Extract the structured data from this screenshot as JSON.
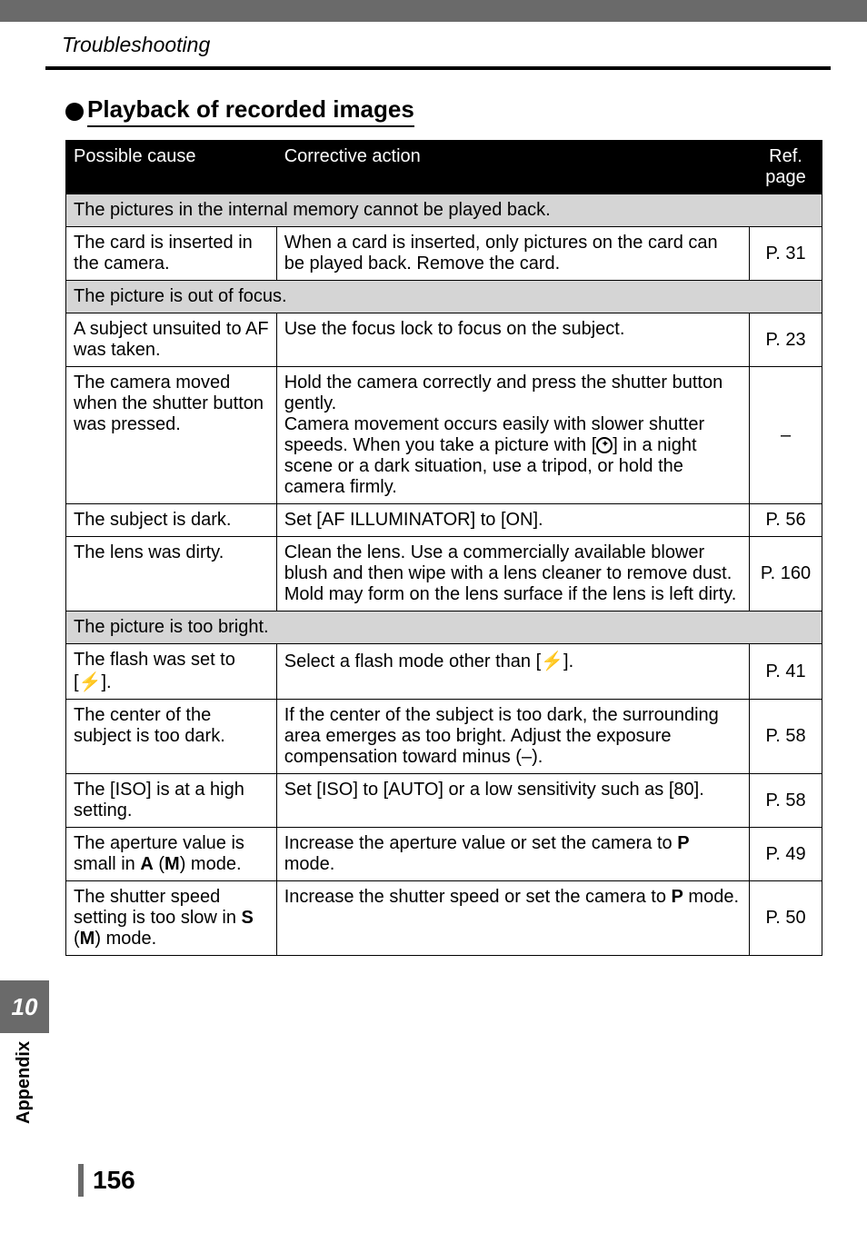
{
  "breadcrumb": "Troubleshooting",
  "section_title": "Playback of recorded images",
  "header": {
    "cause": "Possible cause",
    "action": "Corrective action",
    "ref": "Ref. page"
  },
  "subhead1": "The pictures in the internal memory cannot be played back.",
  "r1": {
    "cause": "The card is inserted in the camera.",
    "action": "When a card is inserted, only pictures on the card can be played back. Remove the card.",
    "ref": "P. 31"
  },
  "subhead2": "The picture is out of focus.",
  "r2": {
    "cause": "A subject unsuited to AF was taken.",
    "action": "Use the focus lock to focus on the subject.",
    "ref": "P. 23"
  },
  "r3": {
    "cause": "The camera moved when the shutter button was pressed.",
    "action_pre": "Hold the camera correctly and press the shutter button gently.\nCamera movement occurs easily with slower shutter speeds. When you take a picture with [",
    "action_post": "] in a night scene or a dark situation, use a tripod, or hold the camera firmly.",
    "ref": "–"
  },
  "r4": {
    "cause": "The subject is dark.",
    "action": "Set [AF ILLUMINATOR] to [ON].",
    "ref": "P. 56"
  },
  "r5": {
    "cause": "The lens was dirty.",
    "action": "Clean the lens. Use a commercially available blower blush and then wipe with a lens cleaner to remove dust. Mold may form on the lens surface if the lens is left dirty.",
    "ref": "P. 160"
  },
  "subhead3": "The picture is too bright.",
  "r6": {
    "cause_pre": "The flash was set to [",
    "cause_post": "].",
    "action_pre": "Select a flash mode other than [",
    "action_post": "].",
    "ref": "P. 41"
  },
  "r7": {
    "cause": "The center of the subject is too dark.",
    "action": "If the center of the subject is too dark, the surrounding area emerges as too bright. Adjust the exposure compensation toward minus (–).",
    "ref": "P. 58"
  },
  "r8": {
    "cause": "The [ISO] is at a high setting.",
    "action": "Set [ISO] to [AUTO] or a low sensitivity such as [80].",
    "ref": "P. 58"
  },
  "r9": {
    "cause_pre": "The aperture value is small in ",
    "cause_post": " mode.",
    "action_pre": "Increase the aperture value or set the camera to ",
    "action_post": " mode.",
    "ref": "P. 49"
  },
  "r10": {
    "cause_pre": "The shutter speed setting is too slow in ",
    "cause_post": " mode.",
    "action_pre": "Increase the shutter speed or set the camera to ",
    "action_post": " mode.",
    "ref": "P. 50"
  },
  "modes": {
    "A": "A",
    "M": "M",
    "S": "S",
    "P": "P"
  },
  "side_tab": "Appendix",
  "side_num": "10",
  "page_num": "156"
}
